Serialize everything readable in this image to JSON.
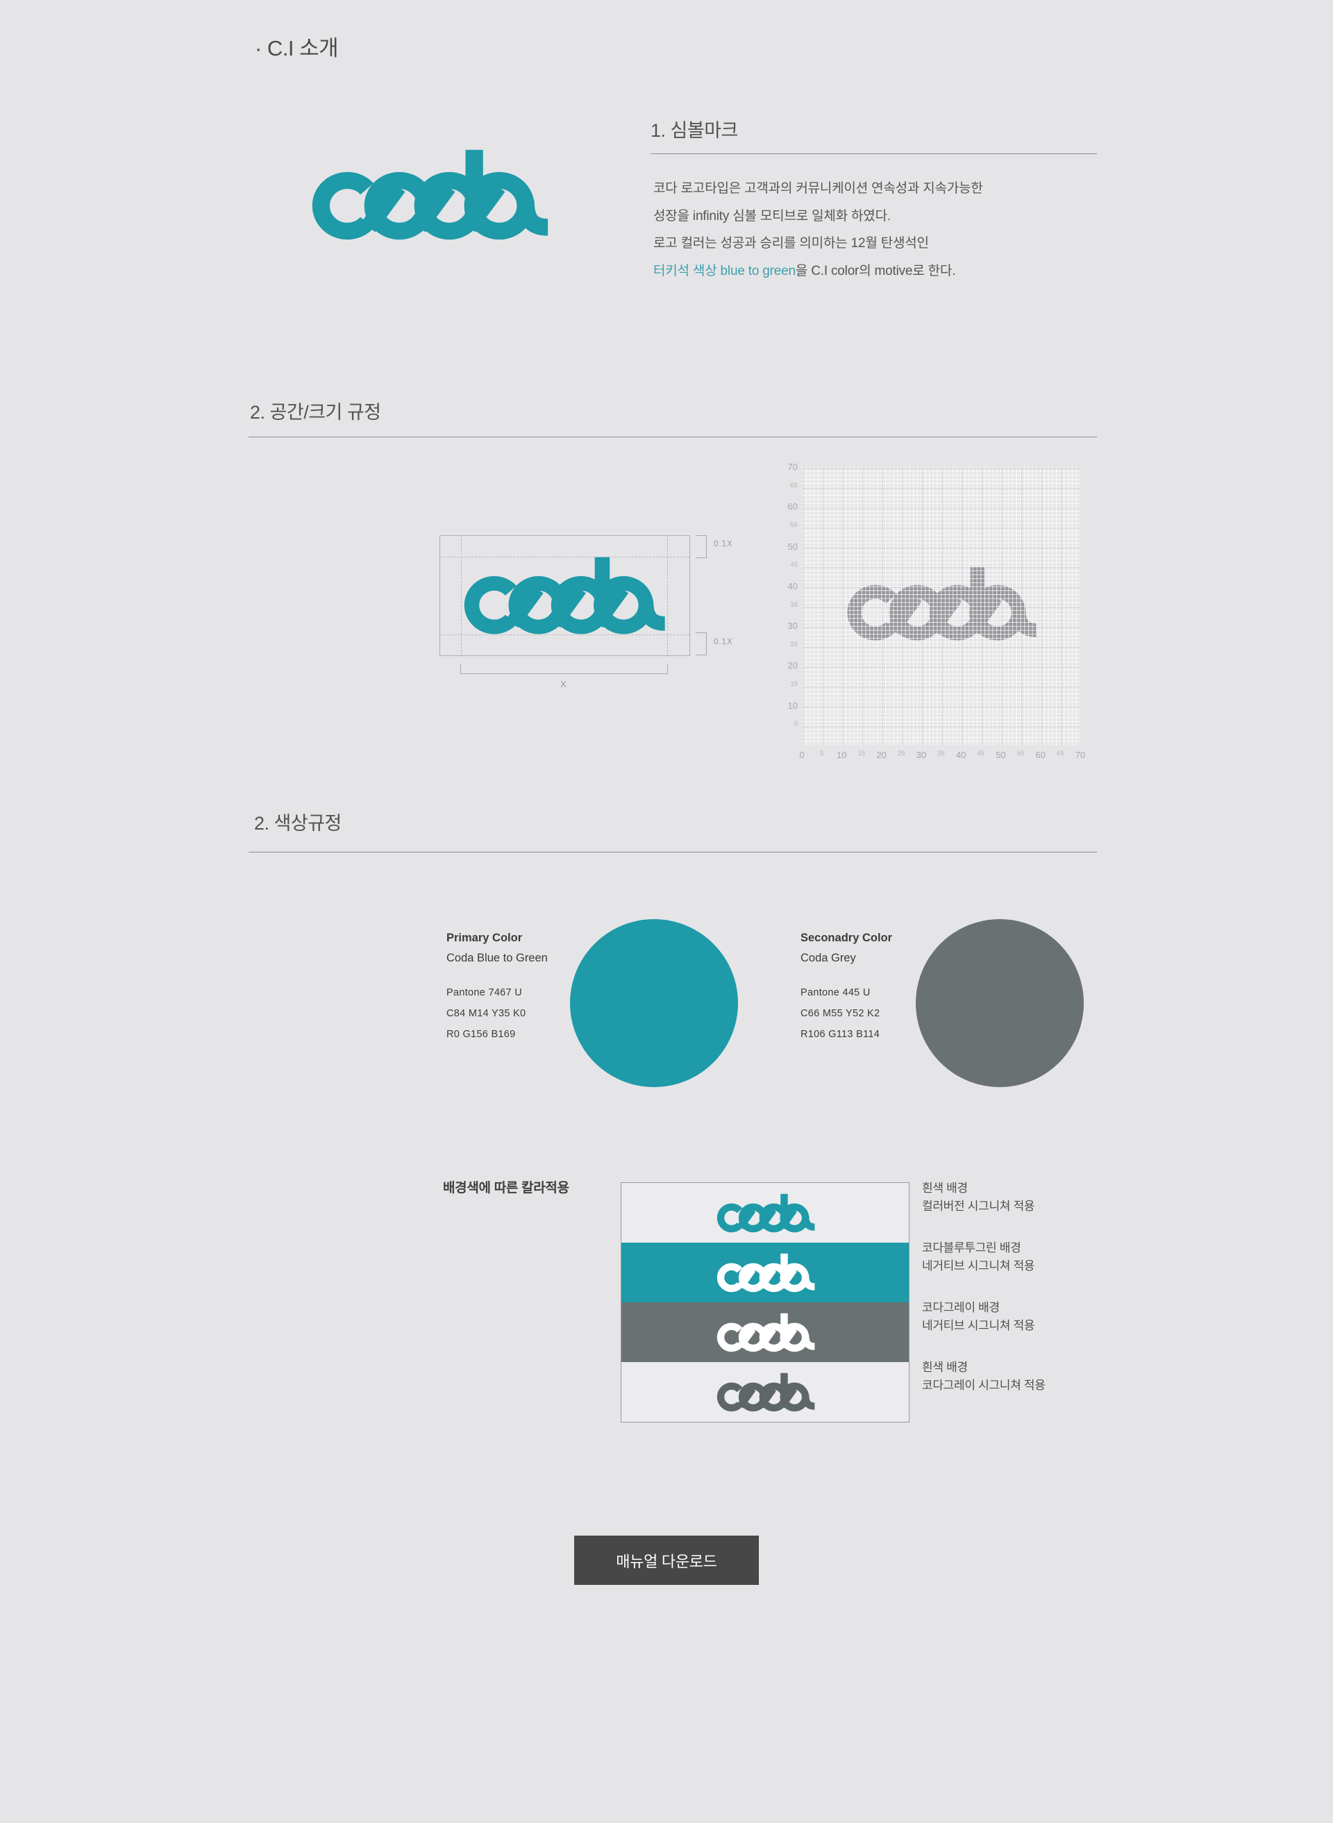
{
  "page": {
    "title": "· C.I 소개"
  },
  "colors": {
    "teal": "#1E9AA8",
    "brand_grey": "#6A7172",
    "logo_white": "#FFFFFF",
    "logo_grey": "#5F6668",
    "panel_white": "#ECECEE",
    "button_grey": "#474747",
    "page_bg": "#E5E5E7"
  },
  "brand": {
    "logo_text": "coda"
  },
  "symbol_section": {
    "heading": "1. 심볼마크",
    "lines": [
      "코다 로고타입은 고객과의 커뮤니케이션 연속성과 지속가능한",
      "성장을 infinity 심볼 모티브로 일체화 하였다.",
      "로고 컬러는 성공과 승리를 의미하는 12월 탄생석인"
    ],
    "line4_highlight": "터키석 색상 blue to green",
    "line4_rest": "을 C.I color의 motive로 한다."
  },
  "space_section": {
    "heading": "2. 공간/크기 규정",
    "clearspace": {
      "top_label": "0.1X",
      "bottom_label": "0.1X",
      "width_label": "X"
    }
  },
  "chart_data": {
    "type": "grid-ruler",
    "x_ticks": [
      0,
      5,
      10,
      15,
      20,
      25,
      30,
      35,
      40,
      45,
      50,
      55,
      60,
      65,
      70
    ],
    "y_ticks": [
      70,
      65,
      60,
      55,
      50,
      45,
      40,
      35,
      30,
      25,
      20,
      15,
      10,
      5
    ],
    "x_range": [
      0,
      70
    ],
    "y_range": [
      0,
      70
    ],
    "minor_step": 1,
    "major_step": 5,
    "grid_on": true,
    "content_note": "coda logotype shown as grey pixel cells spanning approx x 10-59, y 26-40 with ascender to 45"
  },
  "color_section": {
    "heading": "2. 색상규정",
    "primary": {
      "title": "Primary Color",
      "name": "Coda Blue to Green",
      "pantone": "Pantone 7467 U",
      "cmyk": "C84  M14  Y35  K0",
      "rgb": "R0  G156  B169",
      "hex": "#009CA9"
    },
    "secondary": {
      "title": "Seconadry Color",
      "name": "Coda Grey",
      "pantone": "Pantone 445 U",
      "cmyk": "C66  M55  Y52  K2",
      "rgb": "R106  G113  B114",
      "hex": "#6A7172"
    }
  },
  "background_section": {
    "label": "배경색에 따른 칼라적용",
    "rows": [
      {
        "caption": [
          "흰색 배경",
          "컬러버전 시그니쳐 적용"
        ],
        "bg_key": "panel_white",
        "logo_key": "teal"
      },
      {
        "caption": [
          "코다블루투그린 배경",
          "네거티브 시그니쳐 적용"
        ],
        "bg_key": "teal",
        "logo_key": "logo_white"
      },
      {
        "caption": [
          "코다그레이 배경",
          "네거티브 시그니쳐 적용"
        ],
        "bg_key": "brand_grey",
        "logo_key": "logo_white"
      },
      {
        "caption": [
          "흰색 배경",
          "코다그레이 시그니쳐 적용"
        ],
        "bg_key": "panel_white",
        "logo_key": "logo_grey"
      }
    ]
  },
  "download_button": {
    "label": "매뉴얼 다운로드"
  }
}
